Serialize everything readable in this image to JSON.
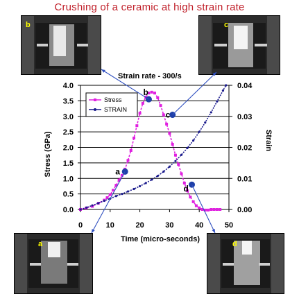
{
  "title": "Crushing of a ceramic at high strain rate",
  "strain_rate_label": "Strain rate - 300/s",
  "photos": [
    {
      "id": "b",
      "label": "b"
    },
    {
      "id": "c",
      "label": "c"
    },
    {
      "id": "a",
      "label": "a"
    },
    {
      "id": "d",
      "label": "d"
    }
  ],
  "colors": {
    "title": "#c0202a",
    "stress": "#e020e0",
    "strain": "#1a1a8c",
    "marker": "#1e3fa8",
    "arrow": "#3050c0",
    "photo_bg": "#2b2b2b"
  },
  "chart_data": {
    "type": "line",
    "xlabel": "Time (micro-seconds)",
    "ylabel": "Stress (GPa)",
    "y2label": "Strain",
    "xlim": [
      0,
      50
    ],
    "ylim": [
      0,
      4.0
    ],
    "y2lim": [
      0,
      0.04
    ],
    "x_ticks": [
      "0",
      "10",
      "20",
      "30",
      "40",
      "50"
    ],
    "y_ticks": [
      "0.0",
      "0.5",
      "1.0",
      "1.5",
      "2.0",
      "2.5",
      "3.0",
      "3.5",
      "4.0"
    ],
    "y2_ticks": [
      "0.00",
      "0.01",
      "0.02",
      "0.03",
      "0.04"
    ],
    "legend_position": "top-left",
    "series": [
      {
        "name": "Stress",
        "axis": "left",
        "x": [
          0,
          2,
          4,
          6,
          8,
          9,
          10,
          11,
          12,
          13,
          14,
          15,
          16,
          17,
          18,
          19,
          20,
          21,
          22,
          23,
          24,
          25,
          26,
          27,
          28,
          29,
          30,
          31,
          32,
          33,
          34,
          35,
          36,
          37,
          38,
          39,
          40,
          41,
          42,
          43,
          44,
          45,
          46,
          47
        ],
        "values": [
          0.0,
          0.05,
          0.1,
          0.2,
          0.3,
          0.38,
          0.48,
          0.62,
          0.78,
          0.95,
          1.1,
          1.3,
          1.58,
          1.9,
          2.3,
          2.7,
          3.1,
          3.42,
          3.62,
          3.75,
          3.78,
          3.75,
          3.6,
          3.35,
          3.05,
          2.75,
          2.45,
          2.1,
          1.75,
          1.45,
          1.15,
          0.85,
          0.6,
          0.4,
          0.25,
          0.12,
          0.05,
          0.0,
          -0.02,
          -0.02,
          0.0,
          0.0,
          0.0,
          0.0
        ]
      },
      {
        "name": "STRAIN",
        "axis": "right",
        "x": [
          0,
          2,
          4,
          6,
          8,
          10,
          12,
          14,
          16,
          18,
          20,
          22,
          24,
          26,
          28,
          30,
          32,
          34,
          36,
          38,
          40,
          42,
          44,
          46,
          48,
          49
        ],
        "values": [
          0.0,
          0.0006,
          0.0013,
          0.002,
          0.0028,
          0.0035,
          0.0043,
          0.005,
          0.0058,
          0.0066,
          0.0075,
          0.0085,
          0.0096,
          0.0108,
          0.0122,
          0.0138,
          0.0156,
          0.0176,
          0.0198,
          0.0222,
          0.025,
          0.028,
          0.0313,
          0.0348,
          0.0383,
          0.04
        ]
      }
    ],
    "annotations": [
      {
        "label": "a",
        "x": 15,
        "y": 1.22
      },
      {
        "label": "b",
        "x": 23,
        "y": 3.55
      },
      {
        "label": "c",
        "x": 31,
        "y": 3.05
      },
      {
        "label": "d",
        "x": 37.5,
        "y": 0.8
      }
    ]
  }
}
